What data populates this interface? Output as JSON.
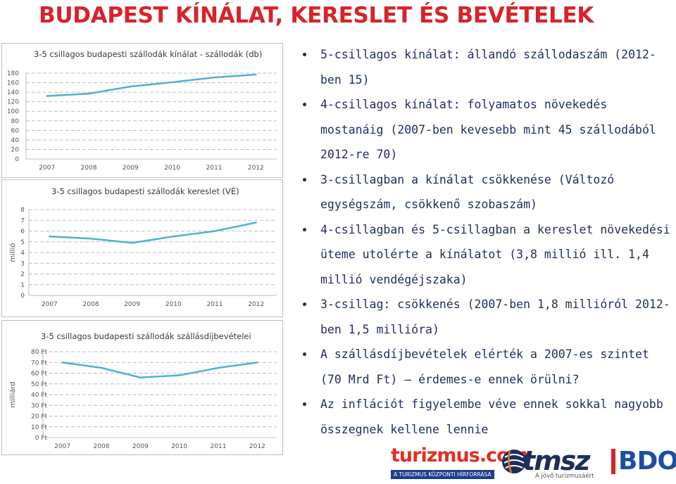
{
  "page": {
    "title": "BUDAPEST KÍNÁLAT, KERESLET ÉS BEVÉTELEK"
  },
  "colors": {
    "title": "#d8232a",
    "line": "#4fb3c9",
    "text": "#1d2e5c",
    "grid": "#bfbfbf"
  },
  "chart_data": [
    {
      "type": "line",
      "title": "3-5 csillagos budapesti szállodák kínálat - szállodák (db)",
      "ylabel": "",
      "xlabel": "",
      "categories": [
        "2007",
        "2008",
        "2009",
        "2010",
        "2011",
        "2012"
      ],
      "values": [
        132,
        137,
        152,
        161,
        171,
        177
      ],
      "ylim": [
        0,
        180
      ],
      "yticks": [
        "0",
        "20",
        "40",
        "60",
        "80",
        "100",
        "120",
        "140",
        "160",
        "180"
      ],
      "grid": true,
      "line_color": "#4fb3c9"
    },
    {
      "type": "line",
      "title": "3-5 csillagos budapesti szállodák kereslet (VÉ)",
      "ylabel": "millió",
      "xlabel": "",
      "categories": [
        "2007",
        "2008",
        "2009",
        "2010",
        "2011",
        "2012"
      ],
      "values": [
        5.5,
        5.3,
        4.9,
        5.5,
        6.0,
        6.8
      ],
      "ylim": [
        0,
        8
      ],
      "yticks": [
        "0",
        "1",
        "2",
        "3",
        "4",
        "5",
        "6",
        "7",
        "8"
      ],
      "grid": true,
      "line_color": "#4fb3c9"
    },
    {
      "type": "line",
      "title": "3-5 csillagos budapesti szállodák szállásdíjbevételei",
      "ylabel": "milliárd",
      "xlabel": "",
      "categories": [
        "2007",
        "2008",
        "2009",
        "2010",
        "2011",
        "2012"
      ],
      "values": [
        70,
        65,
        56,
        58,
        65,
        70
      ],
      "ylim": [
        0,
        80
      ],
      "yticks": [
        "0 Ft",
        "10 Ft",
        "20 Ft",
        "30 Ft",
        "40 Ft",
        "50 Ft",
        "60 Ft",
        "70 Ft",
        "80 Ft"
      ],
      "grid": true,
      "line_color": "#4fb3c9"
    }
  ],
  "bullets": [
    "5-csillagos kínálat: állandó szállodaszám (2012-ben 15)",
    "4-csillagos kínálat: folyamatos növekedés mostanáig (2007-ben kevesebb mint 45 szállodából 2012-re 70)",
    "3-csillagban a kínálat csökkenése (Változó egységszám, csökkenő szobaszám)",
    "4-csillagban és 5-csillagban a kereslet növekedési üteme utolérte a kínálatot (3,8 millió ill. 1,4 millió vendégéjszaka)",
    "3-csillag: csökkenés (2007-ben 1,8 millióról 2012-ben 1,5 millióra)",
    "A szállásdíjbevételek elérték a 2007-es szintet (70 Mrd Ft) – érdemes-e ennek örülni?",
    "Az inflációt figyelembe véve ennek sokkal nagyobb összegnek kellene lennie"
  ],
  "logos": {
    "turizmus": {
      "word_main": "turizmus",
      "word_suffix": ".com",
      "tagline": "A TURIZMUS KÖZPONTI HÍRFORRÁSA"
    },
    "tmsz": {
      "word": "tmsz",
      "tagline": "A jövő turizmusáért"
    },
    "bdo": {
      "word": "BDO"
    }
  }
}
